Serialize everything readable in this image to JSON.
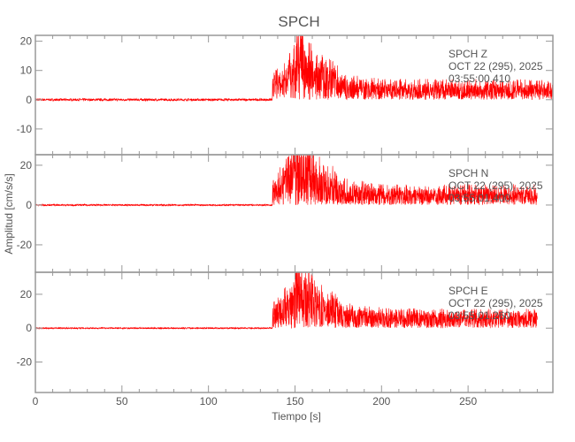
{
  "chart_data": {
    "type": "line",
    "title": "SPCH",
    "xlabel": "Tiempo [s]",
    "ylabel": "Amplitud [cm/s/s]",
    "xlim": [
      0,
      299
    ],
    "xticks": [
      0,
      50,
      100,
      150,
      200,
      250
    ],
    "grid": false,
    "line_color": "#ff0000",
    "axis_color": "#999999",
    "panels": [
      {
        "station": "SPCH",
        "component": "Z",
        "date": "OCT 22 (295), 2025",
        "start_time": "03:55:00.410",
        "ylim": [
          -18.8,
          22
        ],
        "yticks": [
          -10,
          0,
          10,
          20
        ],
        "onset_s": 137,
        "peak_s": 150,
        "peak_max": 22,
        "peak_min": -17,
        "noise": 0.4,
        "end_s": 299
      },
      {
        "station": "SPCH",
        "component": "N",
        "date": "OCT 22 (295), 2025",
        "start_time": "03:55:01.400",
        "ylim": [
          -33.8,
          25.3
        ],
        "yticks": [
          -20,
          0,
          20
        ],
        "onset_s": 137,
        "peak_s": 149,
        "peak_max": 25,
        "peak_min": -33,
        "noise": 0.4,
        "end_s": 290
      },
      {
        "station": "SPCH",
        "component": "E",
        "date": "OCT 22 (295), 2025",
        "start_time": "03:55:01.260",
        "ylim": [
          -38,
          33
        ],
        "yticks": [
          -20,
          0,
          20
        ],
        "onset_s": 137,
        "peak_s": 150,
        "peak_max": 30,
        "peak_min": -36,
        "noise": 0.4,
        "end_s": 290
      }
    ]
  }
}
